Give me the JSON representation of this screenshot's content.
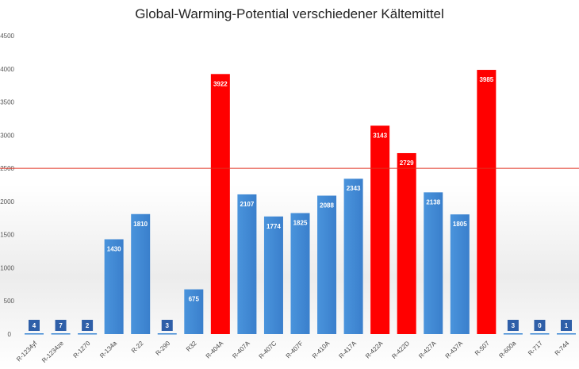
{
  "chart_data": {
    "type": "bar",
    "title": "Global-Warming-Potential verschiedener Kältemittel",
    "xlabel": "",
    "ylabel": "",
    "ylim": [
      0,
      4500
    ],
    "yticks": [
      0,
      500,
      1000,
      1500,
      2000,
      2500,
      3000,
      3500,
      4000,
      4500
    ],
    "grid": false,
    "categories": [
      "R-1234yf",
      "R-1234ze",
      "R-1270",
      "R-134a",
      "R-22",
      "R-290",
      "R32",
      "R-404A",
      "R-407A",
      "R-407C",
      "R-407F",
      "R-410A",
      "R-417A",
      "R-422A",
      "R-422D",
      "R-427A",
      "R-437A",
      "R-507",
      "R-600a",
      "R-717",
      "R-744"
    ],
    "values": [
      4,
      7,
      2,
      1430,
      1810,
      3,
      675,
      3922,
      2107,
      1774,
      1825,
      2088,
      2343,
      3143,
      2729,
      2138,
      1805,
      3985,
      3,
      0,
      1
    ],
    "reference_line": {
      "value": 2500,
      "color": "#e03020"
    },
    "colors": {
      "normal": "#3a86d4",
      "above_threshold": "#ff0000",
      "label_box": "#2f5fa8"
    }
  }
}
